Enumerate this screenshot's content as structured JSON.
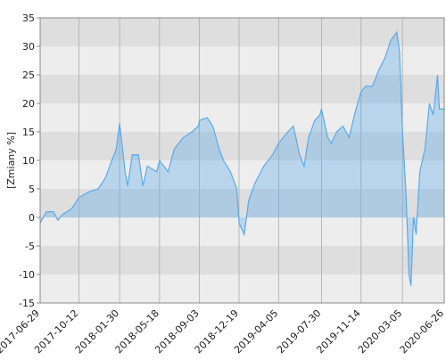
{
  "chart_data": {
    "type": "area",
    "y_label": "[Zmiany %]",
    "x": [
      "2017-06-29",
      "2017-07-16",
      "2017-08-04",
      "2017-08-16",
      "2017-08-28",
      "2017-09-22",
      "2017-10-12",
      "2017-11-09",
      "2017-12-03",
      "2017-12-23",
      "2018-01-09",
      "2018-01-21",
      "2018-01-30",
      "2018-02-14",
      "2018-02-21",
      "2018-03-05",
      "2018-03-22",
      "2018-04-03",
      "2018-04-15",
      "2018-05-10",
      "2018-05-18",
      "2018-06-10",
      "2018-06-27",
      "2018-07-21",
      "2018-08-14",
      "2018-08-31",
      "2018-09-03",
      "2018-09-24",
      "2018-10-09",
      "2018-10-26",
      "2018-11-07",
      "2018-11-26",
      "2018-12-13",
      "2018-12-19",
      "2019-01-02",
      "2019-01-14",
      "2019-01-31",
      "2019-02-24",
      "2019-03-20",
      "2019-04-05",
      "2019-04-30",
      "2019-05-15",
      "2019-06-01",
      "2019-06-13",
      "2019-06-25",
      "2019-07-12",
      "2019-07-26",
      "2019-07-30",
      "2019-08-16",
      "2019-08-26",
      "2019-09-09",
      "2019-09-26",
      "2019-10-13",
      "2019-10-27",
      "2019-11-14",
      "2019-11-26",
      "2019-12-15",
      "2020-01-02",
      "2020-01-18",
      "2020-02-02",
      "2020-02-19",
      "2020-02-26",
      "2020-03-05",
      "2020-03-14",
      "2020-03-23",
      "2020-03-28",
      "2020-04-04",
      "2020-04-11",
      "2020-04-21",
      "2020-05-05",
      "2020-05-17",
      "2020-05-27",
      "2020-06-03",
      "2020-06-08",
      "2020-06-13",
      "2020-06-26"
    ],
    "series": [
      {
        "color": "#5aaaea",
        "values": [
          -1,
          1,
          1,
          -0.5,
          0.5,
          1.5,
          3.5,
          4.5,
          5,
          7,
          10,
          12,
          16.5,
          8,
          5.5,
          11,
          11,
          5.5,
          9,
          8,
          10,
          8,
          12,
          14,
          15,
          16,
          17,
          17.5,
          16,
          12,
          10,
          8,
          5,
          -1,
          -3,
          3,
          6,
          9,
          11,
          13,
          15,
          16,
          11,
          9,
          14,
          17,
          18,
          19,
          14,
          13,
          15,
          16,
          14,
          18,
          22,
          23,
          23,
          26,
          28,
          31,
          32.5,
          29,
          15,
          5,
          -10,
          -12,
          0,
          -3,
          8,
          12,
          20,
          18,
          22,
          25,
          19,
          19
        ]
      }
    ],
    "xlim": [
      "2017-06-29",
      "2020-06-26"
    ],
    "xticks": [
      "2017-06-29",
      "2017-10-12",
      "2018-01-30",
      "2018-05-18",
      "2018-09-03",
      "2018-12-19",
      "2019-04-05",
      "2019-07-30",
      "2019-11-14",
      "2020-03-05",
      "2020-06-26"
    ],
    "ylim": [
      -15,
      35
    ],
    "yticks": [
      -15,
      -10,
      -5,
      0,
      5,
      10,
      15,
      20,
      25,
      30,
      35
    ],
    "grid": true
  }
}
